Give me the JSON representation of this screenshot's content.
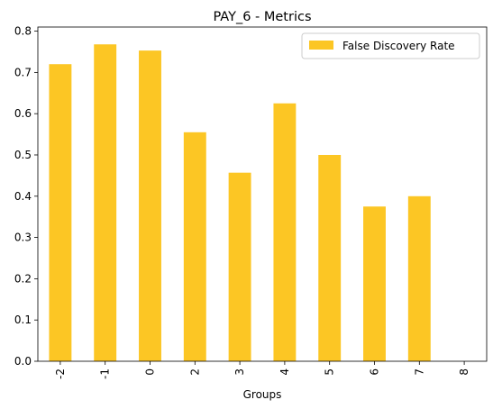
{
  "chart_data": {
    "type": "bar",
    "title": "PAY_6 - Metrics",
    "xlabel": "Groups",
    "ylabel": "",
    "categories": [
      "-2",
      "-1",
      "0",
      "2",
      "3",
      "4",
      "5",
      "6",
      "7",
      "8"
    ],
    "series": [
      {
        "name": "False Discovery Rate",
        "values": [
          0.72,
          0.768,
          0.753,
          0.555,
          0.457,
          0.625,
          0.5,
          0.375,
          0.4,
          0.0
        ],
        "color": "#fcc624"
      }
    ],
    "ylim": [
      0,
      0.81
    ],
    "yticks": [
      0.0,
      0.1,
      0.2,
      0.3,
      0.4,
      0.5,
      0.6,
      0.7,
      0.8
    ],
    "ytick_labels": [
      "0.0",
      "0.1",
      "0.2",
      "0.3",
      "0.4",
      "0.5",
      "0.6",
      "0.7",
      "0.8"
    ],
    "grid": false,
    "legend_position": "top-right",
    "xtick_rotation": "vertical"
  }
}
